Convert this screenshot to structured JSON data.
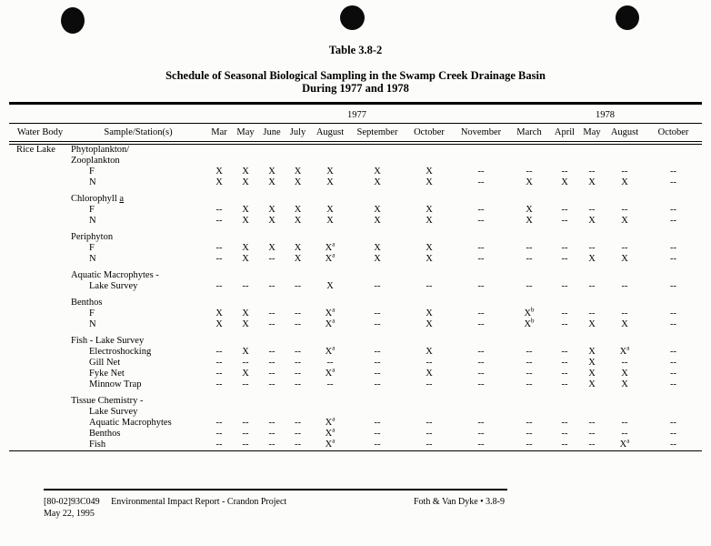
{
  "page": {
    "table_number": "Table 3.8-2",
    "title_line1": "Schedule of Seasonal Biological Sampling in the Swamp Creek Drainage Basin",
    "title_line2": "During 1977 and 1978"
  },
  "table": {
    "year_groups": [
      {
        "label": "1977",
        "span": 8
      },
      {
        "label": "1978",
        "span": 5
      }
    ],
    "columns": [
      "Water Body",
      "Sample/Station(s)",
      "Mar",
      "May",
      "June",
      "July",
      "August",
      "September",
      "October",
      "November",
      "March",
      "April",
      "May",
      "August",
      "October"
    ],
    "water_body": "Rice Lake",
    "sections": [
      {
        "group_lines": [
          "Phytoplankton/",
          "Zooplankton"
        ],
        "rows": [
          {
            "label": "F",
            "values": [
              "X",
              "X",
              "X",
              "X",
              "X",
              "X",
              "X",
              "--",
              "--",
              "--",
              "--",
              "--",
              "--"
            ]
          },
          {
            "label": "N",
            "values": [
              "X",
              "X",
              "X",
              "X",
              "X",
              "X",
              "X",
              "--",
              "X",
              "X",
              "X",
              "X",
              "--"
            ]
          }
        ]
      },
      {
        "group_lines": [
          "Chlorophyll a"
        ],
        "underline_last": true,
        "rows": [
          {
            "label": "F",
            "values": [
              "--",
              "X",
              "X",
              "X",
              "X",
              "X",
              "X",
              "--",
              "X",
              "--",
              "--",
              "--",
              "--"
            ]
          },
          {
            "label": "N",
            "values": [
              "--",
              "X",
              "X",
              "X",
              "X",
              "X",
              "X",
              "--",
              "X",
              "--",
              "X",
              "X",
              "--"
            ]
          }
        ]
      },
      {
        "group_lines": [
          "Periphyton"
        ],
        "rows": [
          {
            "label": "F",
            "values": [
              "--",
              "X",
              "X",
              "X",
              "X^a",
              "X",
              "X",
              "--",
              "--",
              "--",
              "--",
              "--",
              "--"
            ]
          },
          {
            "label": "N",
            "values": [
              "--",
              "X",
              "--",
              "X",
              "X^a",
              "X",
              "X",
              "--",
              "--",
              "--",
              "X",
              "X",
              "--"
            ]
          }
        ]
      },
      {
        "group_lines": [
          "Aquatic Macrophytes -"
        ],
        "rows": [
          {
            "label": "Lake Survey",
            "values": [
              "--",
              "--",
              "--",
              "--",
              "X",
              "--",
              "--",
              "--",
              "--",
              "--",
              "--",
              "--",
              "--"
            ]
          }
        ]
      },
      {
        "group_lines": [
          "Benthos"
        ],
        "rows": [
          {
            "label": "F",
            "values": [
              "X",
              "X",
              "--",
              "--",
              "X^a",
              "--",
              "X",
              "--",
              "X^b",
              "--",
              "--",
              "--",
              "--"
            ]
          },
          {
            "label": "N",
            "values": [
              "X",
              "X",
              "--",
              "--",
              "X^a",
              "--",
              "X",
              "--",
              "X^b",
              "--",
              "X",
              "X",
              "--"
            ]
          }
        ]
      },
      {
        "group_lines": [
          "Fish - Lake Survey"
        ],
        "rows": [
          {
            "label": "Electroshocking",
            "values": [
              "--",
              "X",
              "--",
              "--",
              "X^a",
              "--",
              "X",
              "--",
              "--",
              "--",
              "X",
              "X^a",
              "--"
            ]
          },
          {
            "label": "Gill Net",
            "values": [
              "--",
              "--",
              "--",
              "--",
              "--",
              "--",
              "--",
              "--",
              "--",
              "--",
              "X",
              "--",
              "--"
            ]
          },
          {
            "label": "Fyke Net",
            "values": [
              "--",
              "X",
              "--",
              "--",
              "X^a",
              "--",
              "X",
              "--",
              "--",
              "--",
              "X",
              "X",
              "--"
            ]
          },
          {
            "label": "Minnow Trap",
            "values": [
              "--",
              "--",
              "--",
              "--",
              "--",
              "--",
              "--",
              "--",
              "--",
              "--",
              "X",
              "X",
              "--"
            ]
          }
        ]
      },
      {
        "group_lines": [
          "Tissue Chemistry -"
        ],
        "rows": [
          {
            "label": "Lake Survey",
            "values": []
          },
          {
            "label": "Aquatic Macrophytes",
            "values": [
              "--",
              "--",
              "--",
              "--",
              "X^a",
              "--",
              "--",
              "--",
              "--",
              "--",
              "--",
              "--",
              "--"
            ]
          },
          {
            "label": "Benthos",
            "values": [
              "--",
              "--",
              "--",
              "--",
              "X^a",
              "--",
              "--",
              "--",
              "--",
              "--",
              "--",
              "--",
              "--"
            ]
          },
          {
            "label": "Fish",
            "values": [
              "--",
              "--",
              "--",
              "--",
              "X^a",
              "--",
              "--",
              "--",
              "--",
              "--",
              "--",
              "X^a",
              "--"
            ]
          }
        ]
      }
    ]
  },
  "footer": {
    "doc_code": "[80-02]93C049",
    "doc_title": "Environmental Impact Report - Crandon Project",
    "date": "May 22, 1995",
    "right": "Foth & Van Dyke • 3.8-9"
  }
}
